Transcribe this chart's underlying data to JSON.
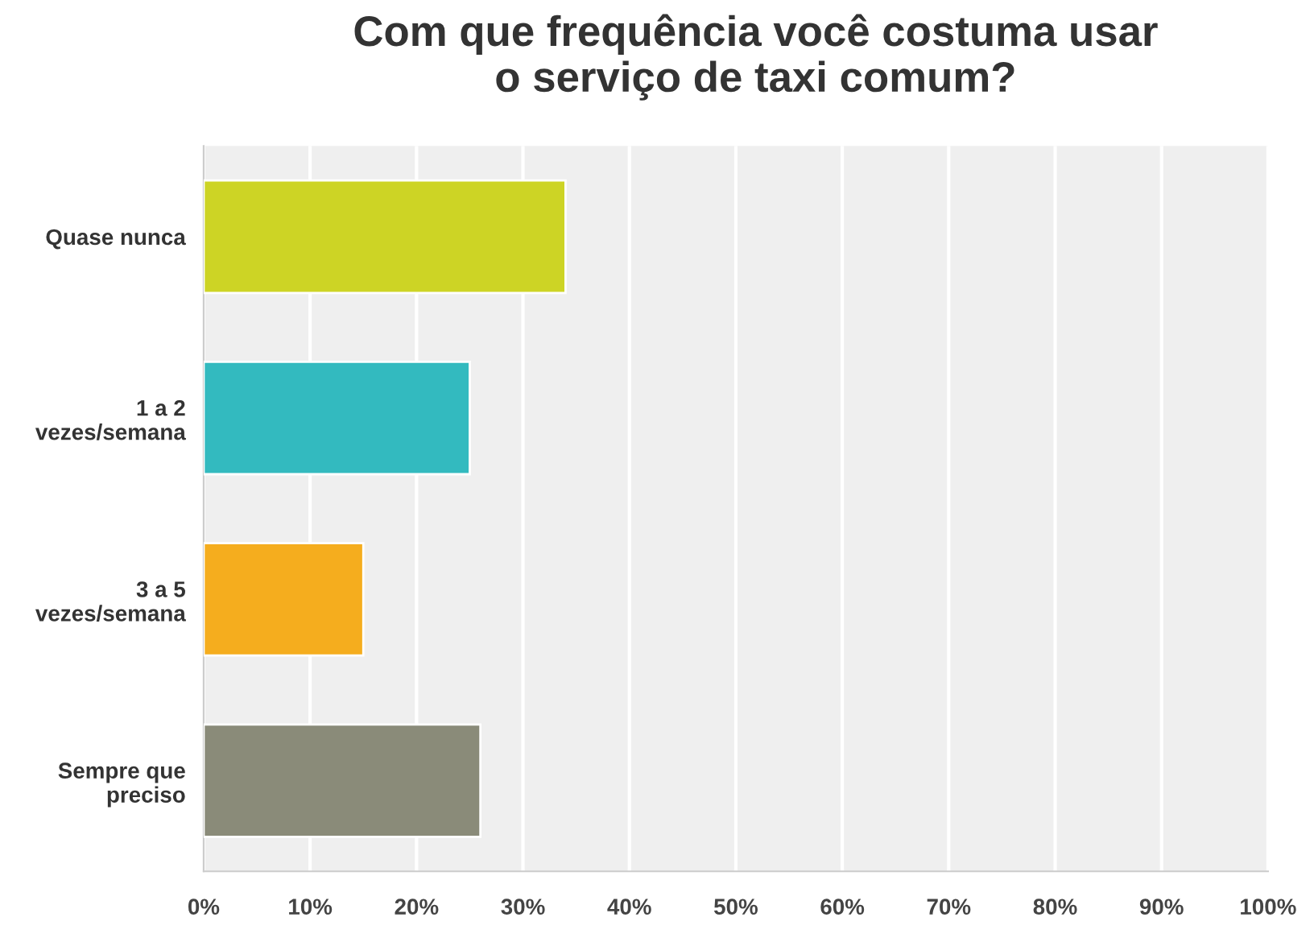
{
  "chart_data": {
    "type": "bar",
    "orientation": "horizontal",
    "title": "Com que frequência você costuma usar\no serviço de taxi comum?",
    "categories": [
      "Quase nunca",
      "1 a 2\nvezes/semana",
      "3 a 5\nvezes/semana",
      "Sempre que\npreciso"
    ],
    "values": [
      34,
      25,
      15,
      26
    ],
    "colors": [
      "#cdd425",
      "#33babf",
      "#f5ad1e",
      "#8a8b79"
    ],
    "xlim": [
      0,
      100
    ],
    "xticks": [
      {
        "value": 0,
        "label": "0%"
      },
      {
        "value": 10,
        "label": "10%"
      },
      {
        "value": 20,
        "label": "20%"
      },
      {
        "value": 30,
        "label": "30%"
      },
      {
        "value": 40,
        "label": "40%"
      },
      {
        "value": 50,
        "label": "50%"
      },
      {
        "value": 60,
        "label": "60%"
      },
      {
        "value": 70,
        "label": "70%"
      },
      {
        "value": 80,
        "label": "80%"
      },
      {
        "value": 90,
        "label": "90%"
      },
      {
        "value": 100,
        "label": "100%"
      }
    ],
    "grid": "x",
    "legend": false
  }
}
